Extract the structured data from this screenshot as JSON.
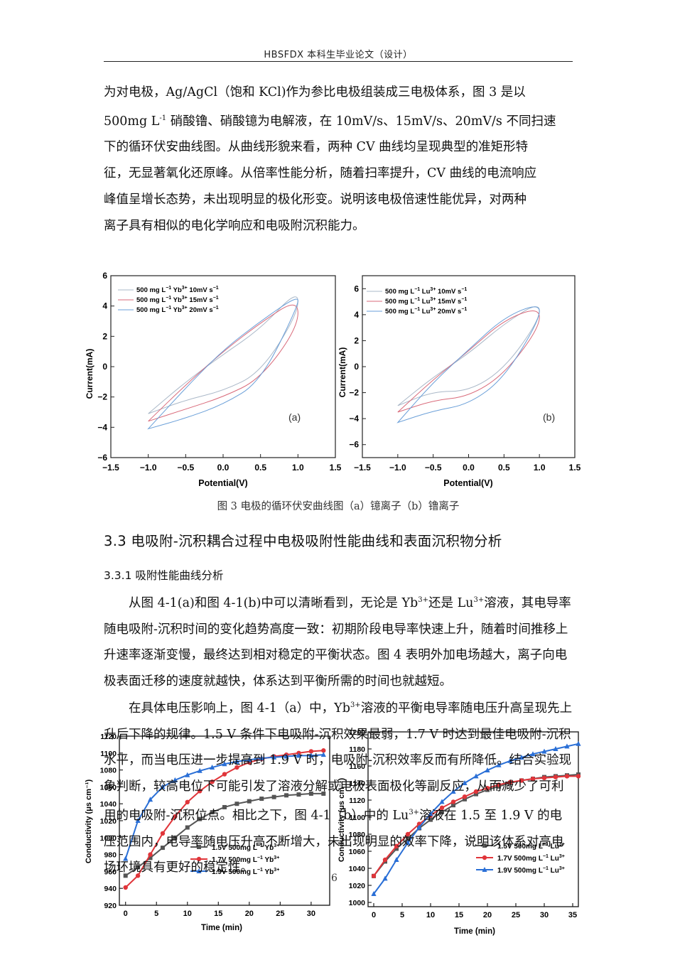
{
  "header": {
    "text": "HBSFDX 本科生毕业论文（设计）"
  },
  "paragraph1": [
    "为对电极，Ag/AgCl（饱和 KCl)作为参比电极组装成三电极体系，图 3 是以",
    "500mg L",
    "-1",
    " 硝酸镥、硝酸镱为电解液，在 10mV/s、15mV/s、20mV/s 不同扫速",
    "下的循环伏安曲线图。从曲线形貌来看，两种 CV 曲线均呈现典型的准矩形特",
    "征，无显著氧化还原峰。从倍率性能分析，随着扫率提升，CV 曲线的电流响应",
    "峰值呈增长态势，未出现明显的极化形变。说明该电极倍速性能优异，对两种",
    "离子具有相似的电化学响应和电吸附沉积能力。"
  ],
  "figure3": {
    "caption": "图 3 电极的循环伏安曲线图（a）镱离子（b）镥离子",
    "xlabel": "Potential(V)",
    "ylabel": "Current(mA)",
    "x_ticks": [
      "−1.5",
      "−1.0",
      "−0.5",
      "0.0",
      "0.5",
      "1.0",
      "1.5"
    ],
    "panel_a": {
      "tag": "(a)",
      "y_ticks": [
        "6",
        "4",
        "2",
        "0",
        "−2",
        "−4",
        "−6"
      ],
      "legend": [
        "500 mg L",
        "−1",
        "Yb",
        "3+",
        "10mV s",
        "−1",
        "15mV s",
        "20mV s"
      ]
    },
    "panel_b": {
      "tag": "(b)",
      "y_ticks": [
        "6",
        "4",
        "2",
        "0",
        "−2",
        "−4",
        "−6"
      ],
      "legend": [
        "500 mg L",
        "−1",
        "Lu",
        "3+",
        "10mV s",
        "15mV s",
        "20mV s"
      ]
    },
    "colors": {
      "10mV": "#aab8c8",
      "15mV": "#d96a7a",
      "20mV": "#6a9fd8"
    }
  },
  "section_3_3": {
    "title": "3.3 电吸附-沉积耦合过程中电极吸附性能曲线和表面沉积物分析"
  },
  "section_3_3_1": {
    "title": "3.3.1 吸附性能曲线分析"
  },
  "paragraph2": [
    "从图 4-1(a)和图 4-1(b)中可以清晰看到，无论是 Yb",
    "3+",
    "还是 Lu",
    "3+",
    "溶液，其电导率随电吸附-沉积时间的变化趋势高度一致：初期阶段电导率快速上升，随着时间推移上升速率逐渐变慢，最终达到相对稳定的平衡状态。图 4 表明外加电场越大，离子向电极表面迁移的速度就越快，体系达到平衡所需的时间也就越短。"
  ],
  "paragraph3": [
    "在具体电压影响上，图 4-1（a）中，Yb",
    "3+",
    "溶液的平衡电导率随电压升高呈现先上升后下降的规律。1.5 V 条件下电吸附-沉积效果最弱，1.7 V 时达到最佳电吸附-沉积水平，而当电压进一步提高到 1.9 V 时，电吸附-沉积效率反而有所降低。结合实验现象判断，较高电位下可能引发了溶液分解或电极表面极化等副反应，从而减少了可利用的电吸附-沉积位点。相比之下，图 4-1（b）中的 Lu",
    "3+",
    "溶液在 1.5 至 1.9 V 的电压范围内，电导率随电压升高不断增大，未出现明显的效率下降，说明该体系对高电场环境具有更好的稳定性。"
  ],
  "page_number": "6",
  "figure4": {
    "xlabel": "Time (min)",
    "ylabel": "Conductivity (μs cm⁻¹)",
    "panel_a": {
      "y_ticks": [
        "920",
        "940",
        "960",
        "980",
        "1000",
        "1020",
        "1040",
        "1060",
        "1080",
        "1100",
        "1120"
      ],
      "x_ticks": [
        "0",
        "5",
        "10",
        "15",
        "20",
        "25",
        "30"
      ],
      "legend": [
        "1.5V 500mg L",
        "1.7V 500mg L",
        "1.9V 500mg L",
        "−1",
        "Yb",
        "3+"
      ]
    },
    "panel_b": {
      "y_ticks": [
        "1000",
        "1020",
        "1040",
        "1060",
        "1080",
        "1100",
        "1120",
        "1140",
        "1160",
        "1180",
        "1200"
      ],
      "x_ticks": [
        "0",
        "5",
        "10",
        "15",
        "20",
        "25",
        "30",
        "35"
      ],
      "legend": [
        "1.5V 500mg L",
        "1.7V 500mg L",
        "1.9V 500mg L",
        "−1",
        "Lu",
        "3+"
      ]
    },
    "colors": {
      "1.5V": "#555555",
      "1.7V": "#e0353a",
      "1.9V": "#2a6fd6"
    }
  },
  "chart_data": [
    {
      "type": "line",
      "title": "",
      "xlabel": "Potential(V)",
      "ylabel": "Current(mA)",
      "xlim": [
        -1.5,
        1.5
      ],
      "ylim": [
        -6,
        6
      ],
      "x": [
        -1.0,
        -0.5,
        0.0,
        0.5,
        1.0
      ],
      "series": [
        {
          "name": "500 mg L−1 Yb3+ 10mV s−1",
          "upper": [
            -3.1,
            -1.0,
            0.8,
            2.5,
            5.1
          ],
          "lower": [
            -3.1,
            -2.2,
            -1.6,
            -0.4,
            3.5
          ]
        },
        {
          "name": "500 mg L−1 Yb3+ 15mV s−1",
          "upper": [
            -3.6,
            -1.2,
            1.0,
            2.9,
            4.5
          ],
          "lower": [
            -3.6,
            -2.8,
            -2.0,
            -0.8,
            2.6
          ]
        },
        {
          "name": "500 mg L−1 Yb3+ 20mV s−1",
          "upper": [
            -4.1,
            -1.4,
            1.1,
            3.0,
            4.7
          ],
          "lower": [
            -4.1,
            -3.4,
            -2.5,
            -1.0,
            4.0
          ]
        }
      ]
    },
    {
      "type": "line",
      "title": "",
      "xlabel": "Potential(V)",
      "ylabel": "Current(mA)",
      "xlim": [
        -1.5,
        1.5
      ],
      "ylim": [
        -7,
        7
      ],
      "x": [
        -1.0,
        -0.5,
        0.0,
        0.5,
        1.0
      ],
      "series": [
        {
          "name": "500 mg L−1 Lu3+ 10mV s−1",
          "upper": [
            -3.0,
            -0.8,
            1.0,
            3.3,
            5.0
          ],
          "lower": [
            -3.0,
            -1.9,
            -1.9,
            -0.2,
            3.6
          ]
        },
        {
          "name": "500 mg L−1 Lu3+ 15mV s−1",
          "upper": [
            -3.5,
            -1.0,
            1.2,
            3.6,
            4.6
          ],
          "lower": [
            -3.5,
            -2.6,
            -2.3,
            -0.6,
            3.0
          ]
        },
        {
          "name": "500 mg L−1 Lu3+ 20mV s−1",
          "upper": [
            -4.3,
            -1.2,
            1.3,
            3.8,
            4.9
          ],
          "lower": [
            -4.3,
            -3.4,
            -2.9,
            -0.9,
            3.6
          ]
        }
      ]
    },
    {
      "type": "line",
      "title": "",
      "xlabel": "Time (min)",
      "ylabel": "Conductivity (μs cm⁻¹)",
      "xlim": [
        -1,
        33
      ],
      "ylim": [
        920,
        1120
      ],
      "series": [
        {
          "name": "1.5V 500mg L−1 Yb3+",
          "x": [
            0,
            2,
            4,
            6,
            8,
            10,
            12,
            14,
            16,
            18,
            20,
            22,
            24,
            26,
            28,
            30,
            32
          ],
          "values": [
            955,
            965,
            976,
            988,
            1000,
            1012,
            1022,
            1030,
            1036,
            1040,
            1043,
            1046,
            1048,
            1050,
            1051,
            1052,
            1052
          ]
        },
        {
          "name": "1.7V 500mg L−1 Yb3+",
          "x": [
            0,
            2,
            4,
            6,
            8,
            10,
            12,
            14,
            16,
            18,
            20,
            22,
            24,
            26,
            28,
            30,
            32
          ],
          "values": [
            941,
            955,
            980,
            1005,
            1025,
            1042,
            1055,
            1066,
            1075,
            1083,
            1089,
            1093,
            1096,
            1098,
            1100,
            1102,
            1103
          ]
        },
        {
          "name": "1.9V 500mg L−1 Yb3+",
          "x": [
            0,
            2,
            4,
            6,
            8,
            10,
            12,
            14,
            16,
            18,
            20,
            22,
            24,
            26,
            28,
            30,
            32
          ],
          "values": [
            975,
            1020,
            1045,
            1060,
            1068,
            1074,
            1079,
            1083,
            1087,
            1090,
            1092,
            1094,
            1095,
            1096,
            1097,
            1097,
            1098
          ]
        }
      ]
    },
    {
      "type": "line",
      "title": "",
      "xlabel": "Time (min)",
      "ylabel": "Conductivity (μs cm⁻¹)",
      "xlim": [
        -1,
        36
      ],
      "ylim": [
        995,
        1200
      ],
      "series": [
        {
          "name": "1.5V 500mg L−1 Lu3+",
          "x": [
            0,
            2,
            4,
            6,
            8,
            10,
            12,
            14,
            16,
            18,
            20,
            22,
            24,
            26,
            28,
            30,
            32,
            34,
            36
          ],
          "values": [
            1031,
            1048,
            1063,
            1075,
            1087,
            1097,
            1106,
            1114,
            1121,
            1127,
            1132,
            1136,
            1140,
            1143,
            1145,
            1147,
            1148,
            1149,
            1150
          ]
        },
        {
          "name": "1.7V 500mg L−1 Lu3+",
          "x": [
            0,
            2,
            4,
            6,
            8,
            10,
            12,
            14,
            16,
            18,
            20,
            22,
            24,
            26,
            28,
            30,
            32,
            34,
            36
          ],
          "values": [
            1031,
            1050,
            1066,
            1080,
            1092,
            1102,
            1111,
            1118,
            1124,
            1130,
            1134,
            1138,
            1141,
            1143,
            1145,
            1146,
            1147,
            1148,
            1148
          ]
        },
        {
          "name": "1.9V 500mg L−1 Lu3+",
          "x": [
            0,
            2,
            4,
            6,
            8,
            10,
            12,
            14,
            16,
            18,
            20,
            22,
            24,
            26,
            28,
            30,
            32,
            34,
            36
          ],
          "values": [
            1010,
            1028,
            1050,
            1070,
            1088,
            1104,
            1118,
            1130,
            1140,
            1148,
            1155,
            1161,
            1166,
            1170,
            1174,
            1177,
            1180,
            1183,
            1186
          ]
        }
      ]
    }
  ]
}
